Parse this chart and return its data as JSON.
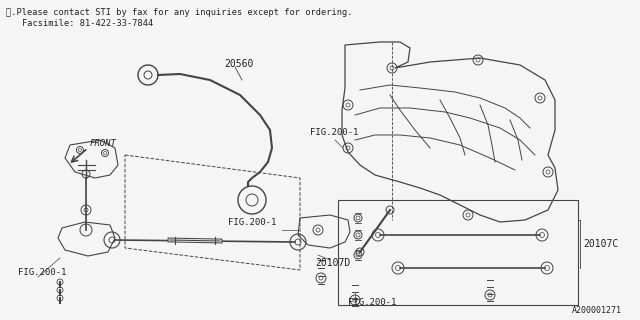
{
  "bg_color": "#f5f5f5",
  "line_color": "#444444",
  "text_color": "#222222",
  "title_line1": "※.Please contact STI by fax for any inquiries except for ordering.",
  "title_line2": "Facsimile: 81-422-33-7844",
  "label_20560": "20560",
  "label_fig200_1a": "FIG.200-1",
  "label_fig200_1b": "FIG.200-1",
  "label_fig200_1c": "FIG.200-1",
  "label_fig200_1d": "FIG.200-1",
  "label_20107C": "20107C",
  "label_20107D": "20107D",
  "label_front": "FRONT",
  "label_ref": "A200001271",
  "fig_width": 6.4,
  "fig_height": 3.2,
  "dpi": 100
}
